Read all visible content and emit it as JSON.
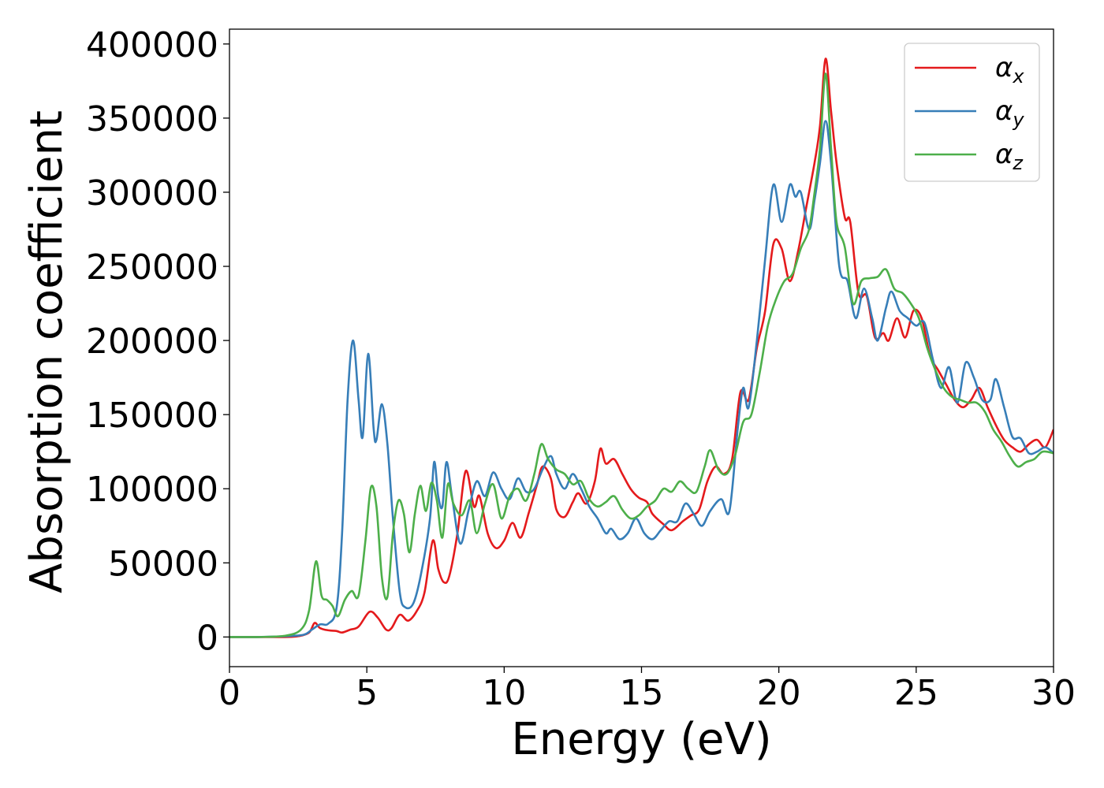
{
  "chart_data": {
    "type": "line",
    "title": "",
    "xlabel": "Energy (eV)",
    "ylabel": "Absorption coefficient",
    "xlim": [
      0,
      30
    ],
    "ylim": [
      -20000,
      410000
    ],
    "xticks": [
      0,
      5,
      10,
      15,
      20,
      25,
      30
    ],
    "yticks": [
      0,
      50000,
      100000,
      150000,
      200000,
      250000,
      300000,
      350000,
      400000
    ],
    "grid": false,
    "legend_position": "top-right",
    "series": [
      {
        "name": "α",
        "subscript": "x",
        "color": "#e41a1c",
        "points": [
          [
            0,
            0
          ],
          [
            1,
            0
          ],
          [
            2,
            0
          ],
          [
            2.5,
            500
          ],
          [
            2.9,
            3000
          ],
          [
            3.1,
            9500
          ],
          [
            3.3,
            6000
          ],
          [
            3.6,
            4500
          ],
          [
            3.9,
            4000
          ],
          [
            4.1,
            3000
          ],
          [
            4.4,
            5000
          ],
          [
            4.7,
            7000
          ],
          [
            5.1,
            17000
          ],
          [
            5.4,
            13000
          ],
          [
            5.7,
            5000
          ],
          [
            5.9,
            6000
          ],
          [
            6.2,
            15000
          ],
          [
            6.5,
            11000
          ],
          [
            6.8,
            17000
          ],
          [
            7.1,
            30000
          ],
          [
            7.4,
            65000
          ],
          [
            7.6,
            46000
          ],
          [
            7.8,
            37000
          ],
          [
            8,
            41000
          ],
          [
            8.3,
            70000
          ],
          [
            8.6,
            112000
          ],
          [
            8.9,
            88000
          ],
          [
            9.1,
            95000
          ],
          [
            9.4,
            70000
          ],
          [
            9.7,
            60000
          ],
          [
            10,
            65000
          ],
          [
            10.3,
            77000
          ],
          [
            10.6,
            67000
          ],
          [
            10.9,
            84000
          ],
          [
            11.2,
            103000
          ],
          [
            11.4,
            115000
          ],
          [
            11.7,
            107000
          ],
          [
            11.9,
            86000
          ],
          [
            12.2,
            81000
          ],
          [
            12.5,
            91000
          ],
          [
            12.7,
            97000
          ],
          [
            13,
            90000
          ],
          [
            13.3,
            105000
          ],
          [
            13.5,
            127000
          ],
          [
            13.7,
            117000
          ],
          [
            14,
            120000
          ],
          [
            14.3,
            110000
          ],
          [
            14.6,
            100000
          ],
          [
            14.9,
            94000
          ],
          [
            15.2,
            91000
          ],
          [
            15.4,
            83000
          ],
          [
            15.8,
            76000
          ],
          [
            16.1,
            72000
          ],
          [
            16.5,
            78000
          ],
          [
            16.8,
            82000
          ],
          [
            17.1,
            86000
          ],
          [
            17.4,
            105000
          ],
          [
            17.7,
            115000
          ],
          [
            18,
            110000
          ],
          [
            18.3,
            120000
          ],
          [
            18.6,
            165000
          ],
          [
            18.9,
            160000
          ],
          [
            19.2,
            195000
          ],
          [
            19.5,
            220000
          ],
          [
            19.8,
            265000
          ],
          [
            20.1,
            262000
          ],
          [
            20.4,
            240000
          ],
          [
            20.7,
            260000
          ],
          [
            21,
            290000
          ],
          [
            21.3,
            320000
          ],
          [
            21.5,
            345000
          ],
          [
            21.7,
            390000
          ],
          [
            21.9,
            355000
          ],
          [
            22.1,
            320000
          ],
          [
            22.4,
            283000
          ],
          [
            22.6,
            280000
          ],
          [
            22.9,
            232000
          ],
          [
            23.2,
            230000
          ],
          [
            23.5,
            202000
          ],
          [
            23.8,
            205000
          ],
          [
            24,
            200000
          ],
          [
            24.3,
            215000
          ],
          [
            24.6,
            202000
          ],
          [
            24.9,
            220000
          ],
          [
            25.2,
            215000
          ],
          [
            25.5,
            190000
          ],
          [
            25.8,
            180000
          ],
          [
            26.1,
            170000
          ],
          [
            26.4,
            160000
          ],
          [
            26.7,
            155000
          ],
          [
            27,
            160000
          ],
          [
            27.3,
            168000
          ],
          [
            27.6,
            155000
          ],
          [
            27.9,
            143000
          ],
          [
            28.2,
            133000
          ],
          [
            28.5,
            128000
          ],
          [
            28.8,
            125000
          ],
          [
            29.1,
            130000
          ],
          [
            29.4,
            133000
          ],
          [
            29.7,
            128000
          ],
          [
            30,
            140000
          ]
        ]
      },
      {
        "name": "α",
        "subscript": "y",
        "color": "#377eb8",
        "points": [
          [
            0,
            0
          ],
          [
            1,
            0
          ],
          [
            2,
            500
          ],
          [
            2.7,
            1500
          ],
          [
            3,
            5000
          ],
          [
            3.3,
            8500
          ],
          [
            3.6,
            9000
          ],
          [
            3.9,
            20000
          ],
          [
            4.1,
            70000
          ],
          [
            4.3,
            160000
          ],
          [
            4.5,
            200000
          ],
          [
            4.7,
            160000
          ],
          [
            4.85,
            135000
          ],
          [
            5.05,
            191000
          ],
          [
            5.25,
            140000
          ],
          [
            5.35,
            133000
          ],
          [
            5.55,
            157000
          ],
          [
            5.75,
            130000
          ],
          [
            5.95,
            80000
          ],
          [
            6.2,
            30000
          ],
          [
            6.4,
            20000
          ],
          [
            6.7,
            23000
          ],
          [
            7,
            45000
          ],
          [
            7.3,
            80000
          ],
          [
            7.45,
            118000
          ],
          [
            7.6,
            95000
          ],
          [
            7.75,
            88000
          ],
          [
            7.9,
            118000
          ],
          [
            8.1,
            95000
          ],
          [
            8.4,
            63000
          ],
          [
            8.7,
            85000
          ],
          [
            9,
            105000
          ],
          [
            9.3,
            95000
          ],
          [
            9.6,
            111000
          ],
          [
            9.9,
            100000
          ],
          [
            10.2,
            93000
          ],
          [
            10.5,
            107000
          ],
          [
            10.8,
            98000
          ],
          [
            11.1,
            100000
          ],
          [
            11.4,
            113000
          ],
          [
            11.7,
            122000
          ],
          [
            11.9,
            110000
          ],
          [
            12.2,
            100000
          ],
          [
            12.5,
            110000
          ],
          [
            12.8,
            100000
          ],
          [
            13.1,
            88000
          ],
          [
            13.4,
            80000
          ],
          [
            13.7,
            70000
          ],
          [
            13.9,
            73000
          ],
          [
            14.2,
            66000
          ],
          [
            14.5,
            70000
          ],
          [
            14.8,
            80000
          ],
          [
            15.1,
            70000
          ],
          [
            15.4,
            66000
          ],
          [
            15.7,
            72000
          ],
          [
            16,
            78000
          ],
          [
            16.3,
            78000
          ],
          [
            16.6,
            90000
          ],
          [
            16.9,
            83000
          ],
          [
            17.2,
            75000
          ],
          [
            17.5,
            85000
          ],
          [
            17.9,
            93000
          ],
          [
            18.2,
            85000
          ],
          [
            18.5,
            140000
          ],
          [
            18.7,
            168000
          ],
          [
            18.9,
            155000
          ],
          [
            19.2,
            200000
          ],
          [
            19.5,
            255000
          ],
          [
            19.8,
            305000
          ],
          [
            20.1,
            280000
          ],
          [
            20.4,
            305000
          ],
          [
            20.6,
            297000
          ],
          [
            20.8,
            300000
          ],
          [
            21.1,
            275000
          ],
          [
            21.3,
            295000
          ],
          [
            21.5,
            320000
          ],
          [
            21.7,
            348000
          ],
          [
            21.9,
            320000
          ],
          [
            22.2,
            250000
          ],
          [
            22.5,
            240000
          ],
          [
            22.8,
            215000
          ],
          [
            23.1,
            235000
          ],
          [
            23.4,
            215000
          ],
          [
            23.6,
            200000
          ],
          [
            23.9,
            222000
          ],
          [
            24.1,
            233000
          ],
          [
            24.4,
            220000
          ],
          [
            24.7,
            215000
          ],
          [
            25,
            210000
          ],
          [
            25.3,
            212000
          ],
          [
            25.6,
            188000
          ],
          [
            25.9,
            168000
          ],
          [
            26.2,
            182000
          ],
          [
            26.5,
            158000
          ],
          [
            26.8,
            185000
          ],
          [
            27.1,
            175000
          ],
          [
            27.4,
            160000
          ],
          [
            27.7,
            160000
          ],
          [
            27.9,
            174000
          ],
          [
            28.2,
            155000
          ],
          [
            28.5,
            135000
          ],
          [
            28.8,
            134000
          ],
          [
            29.1,
            124000
          ],
          [
            29.4,
            125000
          ],
          [
            29.7,
            128000
          ],
          [
            30,
            124000
          ]
        ]
      },
      {
        "name": "α",
        "subscript": "z",
        "color": "#4daf4a",
        "points": [
          [
            0,
            0
          ],
          [
            1,
            0
          ],
          [
            2,
            800
          ],
          [
            2.6,
            5000
          ],
          [
            2.9,
            18000
          ],
          [
            3.15,
            51000
          ],
          [
            3.35,
            28000
          ],
          [
            3.55,
            25000
          ],
          [
            3.75,
            21000
          ],
          [
            3.95,
            14000
          ],
          [
            4.2,
            25000
          ],
          [
            4.45,
            31000
          ],
          [
            4.7,
            28000
          ],
          [
            4.95,
            65000
          ],
          [
            5.15,
            101000
          ],
          [
            5.35,
            88000
          ],
          [
            5.55,
            40000
          ],
          [
            5.75,
            27000
          ],
          [
            5.95,
            70000
          ],
          [
            6.15,
            92000
          ],
          [
            6.35,
            83000
          ],
          [
            6.55,
            57000
          ],
          [
            6.75,
            83000
          ],
          [
            6.95,
            102000
          ],
          [
            7.15,
            85000
          ],
          [
            7.35,
            104000
          ],
          [
            7.55,
            92000
          ],
          [
            7.75,
            67000
          ],
          [
            7.95,
            103000
          ],
          [
            8.15,
            90000
          ],
          [
            8.45,
            82000
          ],
          [
            8.75,
            92000
          ],
          [
            9,
            70000
          ],
          [
            9.3,
            90000
          ],
          [
            9.6,
            103000
          ],
          [
            9.9,
            80000
          ],
          [
            10.2,
            95000
          ],
          [
            10.5,
            100000
          ],
          [
            10.8,
            92000
          ],
          [
            11.1,
            110000
          ],
          [
            11.35,
            130000
          ],
          [
            11.6,
            120000
          ],
          [
            11.9,
            113000
          ],
          [
            12.2,
            110000
          ],
          [
            12.5,
            103000
          ],
          [
            12.8,
            105000
          ],
          [
            13.1,
            93000
          ],
          [
            13.4,
            88000
          ],
          [
            13.7,
            91000
          ],
          [
            14,
            95000
          ],
          [
            14.3,
            86000
          ],
          [
            14.6,
            80000
          ],
          [
            14.9,
            82000
          ],
          [
            15.2,
            88000
          ],
          [
            15.5,
            92000
          ],
          [
            15.8,
            100000
          ],
          [
            16.1,
            98000
          ],
          [
            16.4,
            105000
          ],
          [
            16.7,
            100000
          ],
          [
            17,
            98000
          ],
          [
            17.3,
            115000
          ],
          [
            17.5,
            126000
          ],
          [
            17.8,
            113000
          ],
          [
            18.1,
            110000
          ],
          [
            18.4,
            122000
          ],
          [
            18.7,
            145000
          ],
          [
            19,
            150000
          ],
          [
            19.3,
            178000
          ],
          [
            19.6,
            210000
          ],
          [
            19.9,
            228000
          ],
          [
            20.2,
            240000
          ],
          [
            20.5,
            245000
          ],
          [
            20.8,
            262000
          ],
          [
            21.1,
            275000
          ],
          [
            21.3,
            300000
          ],
          [
            21.5,
            330000
          ],
          [
            21.7,
            380000
          ],
          [
            21.9,
            330000
          ],
          [
            22.1,
            280000
          ],
          [
            22.4,
            263000
          ],
          [
            22.7,
            225000
          ],
          [
            23,
            240000
          ],
          [
            23.3,
            242000
          ],
          [
            23.6,
            243000
          ],
          [
            23.9,
            248000
          ],
          [
            24.2,
            235000
          ],
          [
            24.5,
            232000
          ],
          [
            24.8,
            225000
          ],
          [
            25.1,
            215000
          ],
          [
            25.4,
            195000
          ],
          [
            25.7,
            180000
          ],
          [
            26,
            168000
          ],
          [
            26.3,
            162000
          ],
          [
            26.6,
            160000
          ],
          [
            26.9,
            158000
          ],
          [
            27.2,
            158000
          ],
          [
            27.5,
            152000
          ],
          [
            27.8,
            140000
          ],
          [
            28.1,
            132000
          ],
          [
            28.4,
            122000
          ],
          [
            28.7,
            115000
          ],
          [
            29,
            118000
          ],
          [
            29.3,
            120000
          ],
          [
            29.6,
            125000
          ],
          [
            30,
            124000
          ]
        ]
      }
    ]
  }
}
